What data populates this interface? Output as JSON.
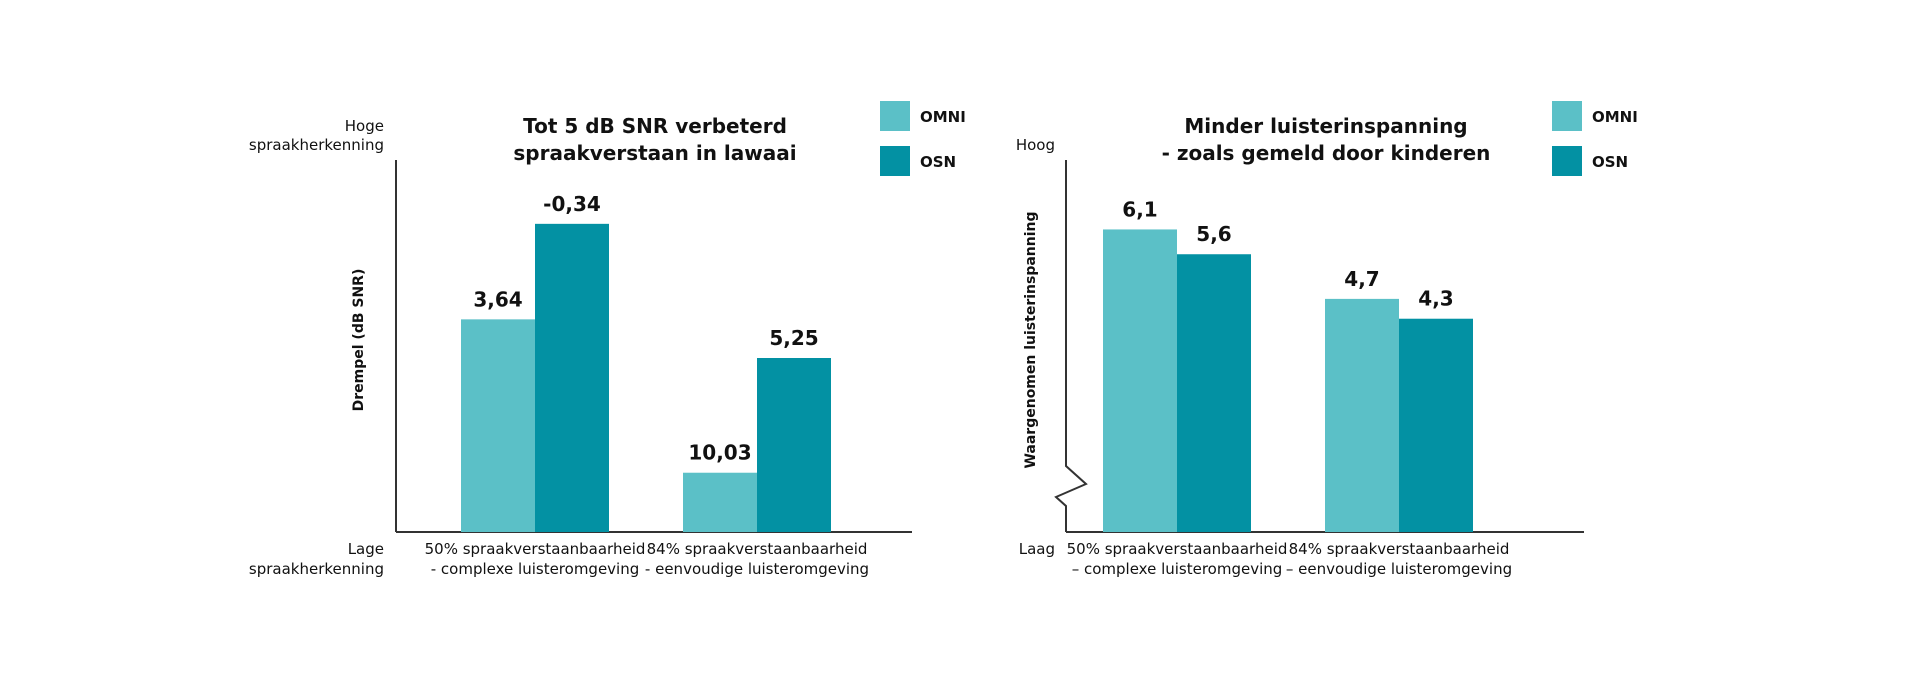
{
  "colors": {
    "omni": "#5bc0c7",
    "osn": "#0391a3",
    "axis": "#333333"
  },
  "legend": [
    "OMNI",
    "OSN"
  ],
  "chart_data": [
    {
      "type": "bar",
      "title": [
        "Tot 5 dB SNR verbeterd",
        "spraakverstaan in lawaai"
      ],
      "ylabel": "Drempel (dB SNR)",
      "y_top_label": [
        "Hoge",
        "spraakherkenning"
      ],
      "y_bottom_label": [
        "Lage",
        "spraakherkenning"
      ],
      "categories": [
        [
          "50% spraakverstaanbaarheid",
          "- complexe luisteromgeving"
        ],
        [
          "84% spraakverstaanbaarheid",
          "- eenvoudige luisteromgeving"
        ]
      ],
      "series": [
        {
          "name": "OMNI",
          "values": [
            3.64,
            10.03
          ],
          "labels": [
            "3,64",
            "10,03"
          ]
        },
        {
          "name": "OSN",
          "values": [
            -0.34,
            5.25
          ],
          "labels": [
            "-0,34",
            "5,25"
          ]
        }
      ],
      "y_inverted": true,
      "ylim": [
        12.5,
        -3
      ],
      "grid": false,
      "legend_position": "top-right"
    },
    {
      "type": "bar",
      "title": [
        "Minder luisterinspanning",
        "- zoals gemeld door kinderen"
      ],
      "ylabel": "Waargenomen luisterinspanning",
      "y_top_label": [
        "Hoog"
      ],
      "y_bottom_label": [
        "Laag"
      ],
      "categories": [
        [
          "50% spraakverstaanbaarheid",
          "– complexe luisteromgeving"
        ],
        [
          "84% spraakverstaanbaarheid",
          "– eenvoudige luisteromgeving"
        ]
      ],
      "series": [
        {
          "name": "OMNI",
          "values": [
            6.1,
            4.7
          ],
          "labels": [
            "6,1",
            "4,7"
          ]
        },
        {
          "name": "OSN",
          "values": [
            5.6,
            4.3
          ],
          "labels": [
            "5,6",
            "4,3"
          ]
        }
      ],
      "y_inverted": false,
      "ylim": [
        0,
        7.5
      ],
      "axis_break": true,
      "grid": false,
      "legend_position": "top-right"
    }
  ]
}
